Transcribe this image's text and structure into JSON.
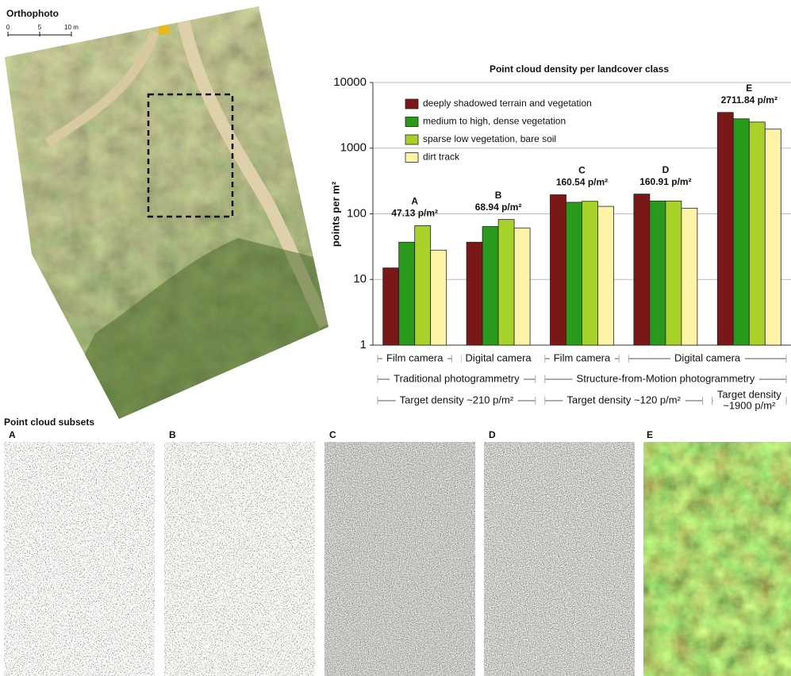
{
  "orthophoto": {
    "title": "Orthophoto",
    "scale_labels": [
      "0",
      "5",
      "10 m"
    ]
  },
  "chart_data": {
    "type": "bar",
    "title": "Point cloud density per landcover class",
    "y_label": "points per m²",
    "categories": [
      "A",
      "B",
      "C",
      "D",
      "E"
    ],
    "annotations": [
      "47.13 p/m²",
      "68.94 p/m²",
      "160.54 p/m²",
      "160.91 p/m²",
      "2711.84 p/m²"
    ],
    "series": [
      {
        "name": "deeply shadowed terrain and vegetation",
        "color": "#7a1818",
        "values": [
          15,
          37,
          195,
          200,
          3500
        ]
      },
      {
        "name": "medium to high, dense vegetation",
        "color": "#2a9a1c",
        "values": [
          37,
          64,
          150,
          157,
          2800
        ]
      },
      {
        "name": "sparse low vegetation, bare soil",
        "color": "#a6d22a",
        "values": [
          66,
          82,
          155,
          157,
          2500
        ]
      },
      {
        "name": "dirt track",
        "color": "#fdf3a6",
        "values": [
          28,
          61,
          130,
          122,
          1950
        ]
      }
    ],
    "ylim": [
      1,
      10000
    ],
    "yticks": [
      1,
      10,
      100,
      1000,
      10000
    ],
    "log_scale": true,
    "grid": true,
    "legend": "top-left",
    "x_tiers": [
      [
        {
          "label": [
            "Film camera"
          ],
          "span": 1
        },
        {
          "label": [
            "Digital camera"
          ],
          "span": 1
        },
        {
          "label": [
            "Film camera"
          ],
          "span": 1
        },
        {
          "label": [
            "Digital camera"
          ],
          "span": 2
        }
      ],
      [
        {
          "label": [
            "Traditional photogrammetry"
          ],
          "span": 2
        },
        {
          "label": [
            "Structure-from-Motion photogrammetry"
          ],
          "span": 3
        }
      ],
      [
        {
          "label": [
            "Target density ~210 p/m²"
          ],
          "span": 2
        },
        {
          "label": [
            "Target density ~120 p/m²"
          ],
          "span": 2
        },
        {
          "label": [
            "Target density",
            "~1900 p/m²"
          ],
          "span": 1
        }
      ]
    ]
  },
  "subsets": {
    "title": "Point cloud subsets",
    "panels": [
      "A",
      "B",
      "C",
      "D",
      "E"
    ]
  }
}
